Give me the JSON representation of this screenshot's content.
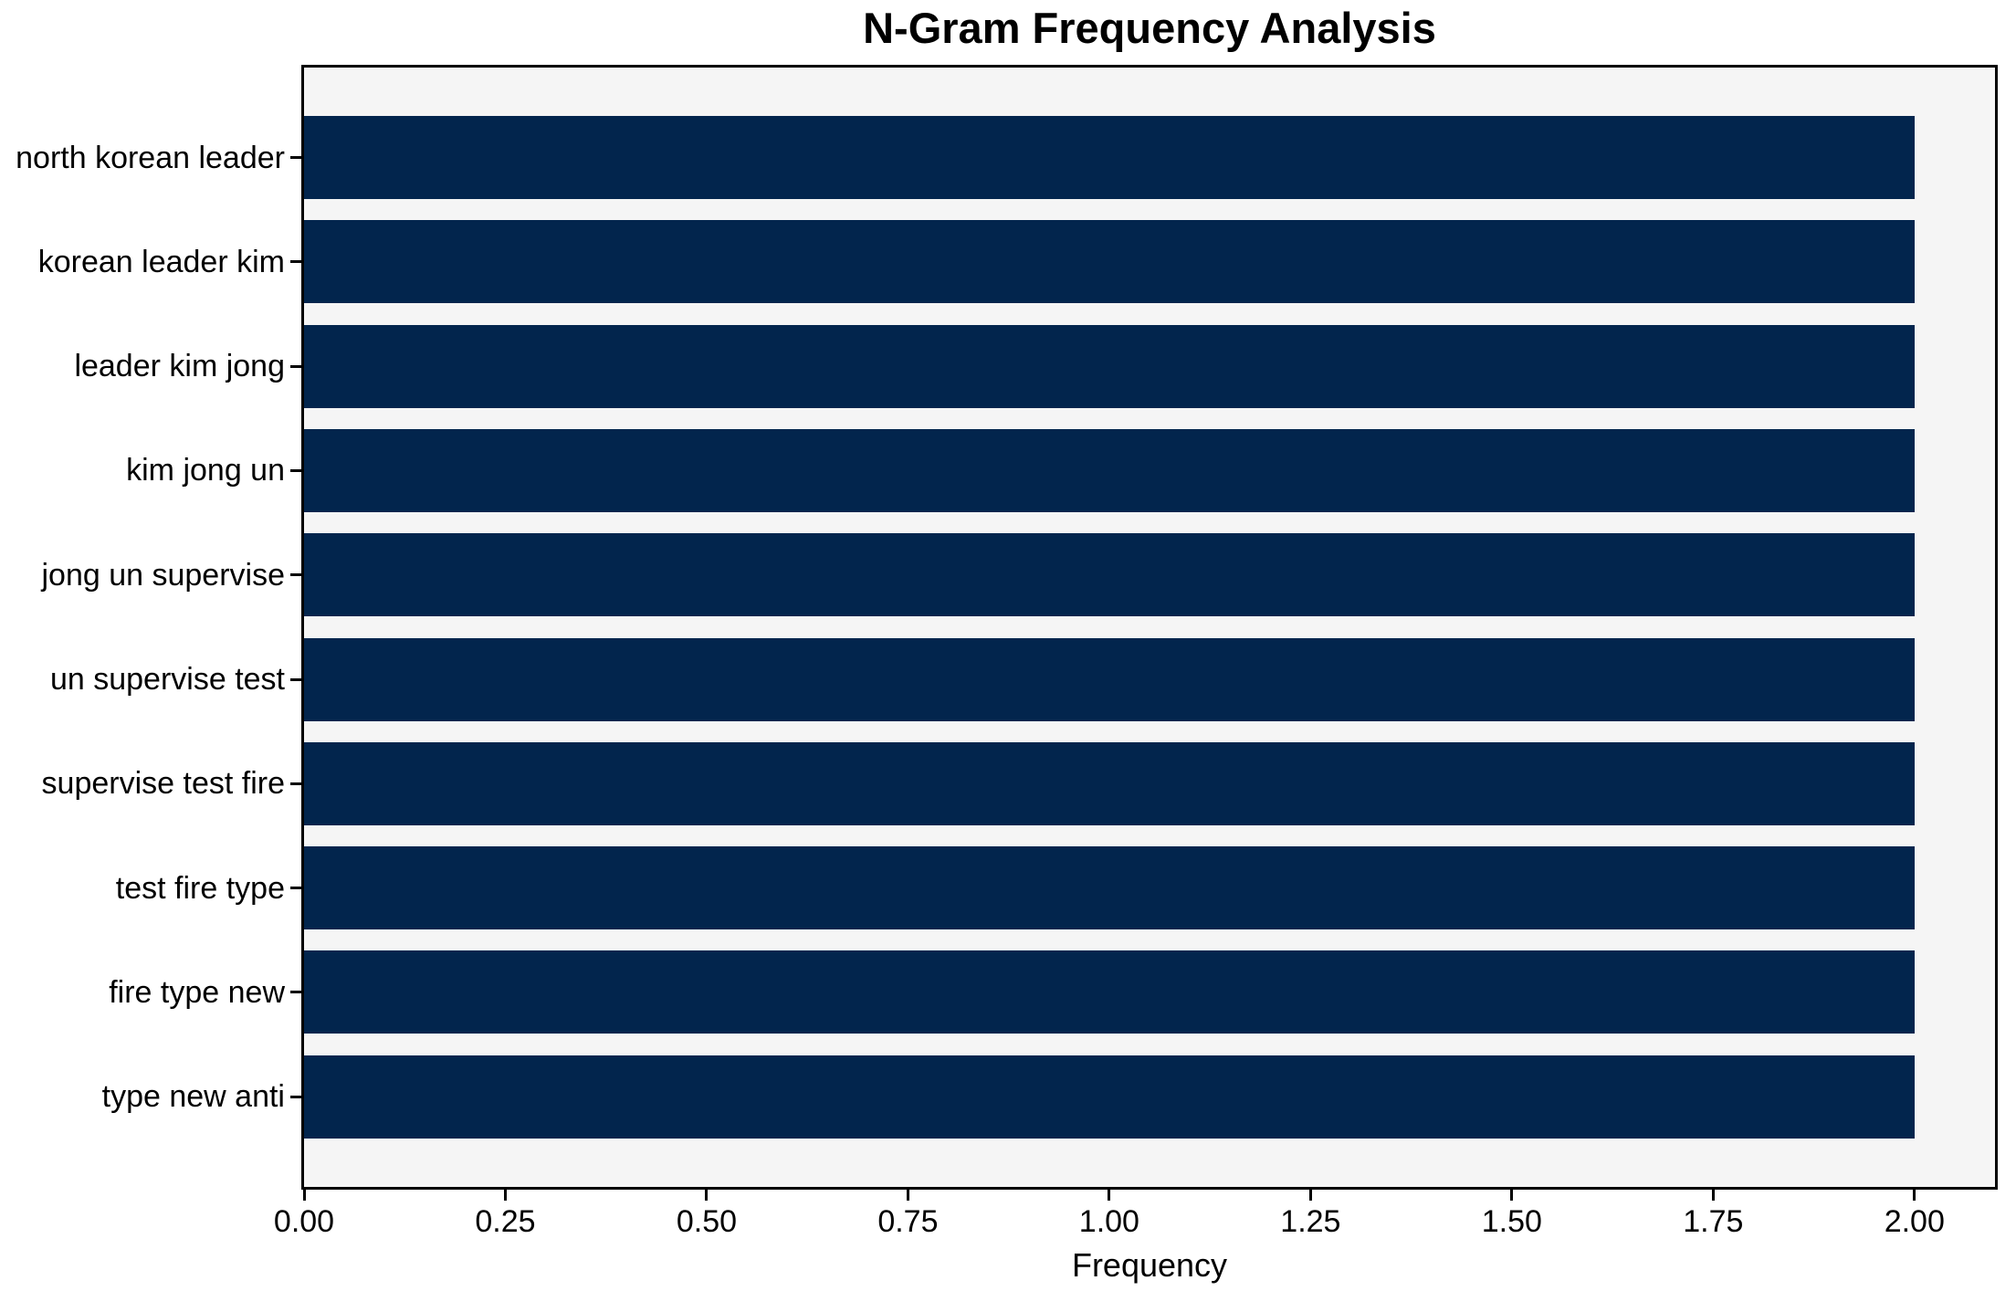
{
  "chart_data": {
    "type": "bar",
    "orientation": "horizontal",
    "title": "N-Gram Frequency Analysis",
    "xlabel": "Frequency",
    "categories": [
      "north korean leader",
      "korean leader kim",
      "leader kim jong",
      "kim jong un",
      "jong un supervise",
      "un supervise test",
      "supervise test fire",
      "test fire type",
      "fire type new",
      "type new anti"
    ],
    "values": [
      2,
      2,
      2,
      2,
      2,
      2,
      2,
      2,
      2,
      2
    ],
    "xlim": [
      0,
      2.1
    ],
    "xticks": {
      "values": [
        0,
        0.25,
        0.5,
        0.75,
        1.0,
        1.25,
        1.5,
        1.75,
        2.0
      ],
      "labels": [
        "0.00",
        "0.25",
        "0.50",
        "0.75",
        "1.00",
        "1.25",
        "1.50",
        "1.75",
        "2.00"
      ]
    },
    "grid": false,
    "legend": null,
    "colors": {
      "bar": "#02254d",
      "plot_bg": "#f5f5f5",
      "figure_bg": "#ffffff",
      "spine": "#000000",
      "text": "#000000"
    }
  }
}
